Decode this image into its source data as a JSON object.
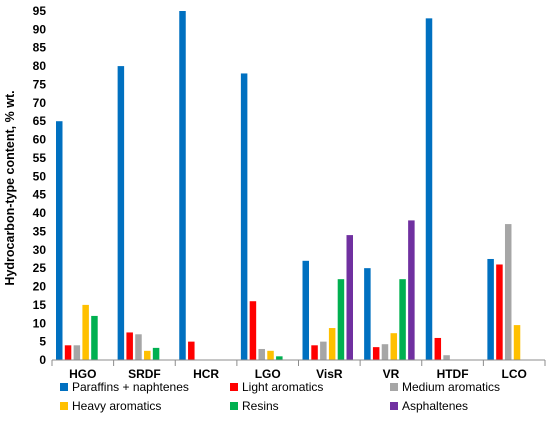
{
  "chart_data": {
    "type": "bar",
    "title": "",
    "xlabel": "",
    "ylabel": "Hydrocarbon-type content, % wt.",
    "ylim": [
      0,
      95
    ],
    "yticks": [
      0,
      5,
      10,
      15,
      20,
      25,
      30,
      35,
      40,
      45,
      50,
      55,
      60,
      65,
      70,
      75,
      80,
      85,
      90,
      95
    ],
    "grid": false,
    "legend_position": "bottom",
    "categories": [
      "HGO",
      "SRDF",
      "HCR",
      "LGO",
      "VisR",
      "VR",
      "HTDF",
      "LCO"
    ],
    "series": [
      {
        "name": "Paraffins + naphtenes",
        "color": "#0070C0",
        "values": [
          65,
          80,
          95,
          78,
          27,
          25,
          93,
          27.5
        ]
      },
      {
        "name": "Light aromatics",
        "color": "#FF0000",
        "values": [
          4,
          7.5,
          5,
          16,
          4,
          3.5,
          6,
          26
        ]
      },
      {
        "name": "Medium aromatics",
        "color": "#A6A6A6",
        "values": [
          4,
          7,
          0,
          3,
          5,
          4.3,
          1.3,
          37
        ]
      },
      {
        "name": "Heavy aromatics",
        "color": "#FFC000",
        "values": [
          15,
          2.5,
          0,
          2.5,
          8.7,
          7.3,
          0,
          9.5
        ]
      },
      {
        "name": "Resins",
        "color": "#00B050",
        "values": [
          12,
          3.3,
          0,
          1,
          22,
          22,
          0,
          0
        ]
      },
      {
        "name": "Asphaltenes",
        "color": "#7030A0",
        "values": [
          0,
          0,
          0,
          0,
          34,
          38,
          0,
          0
        ]
      }
    ]
  }
}
